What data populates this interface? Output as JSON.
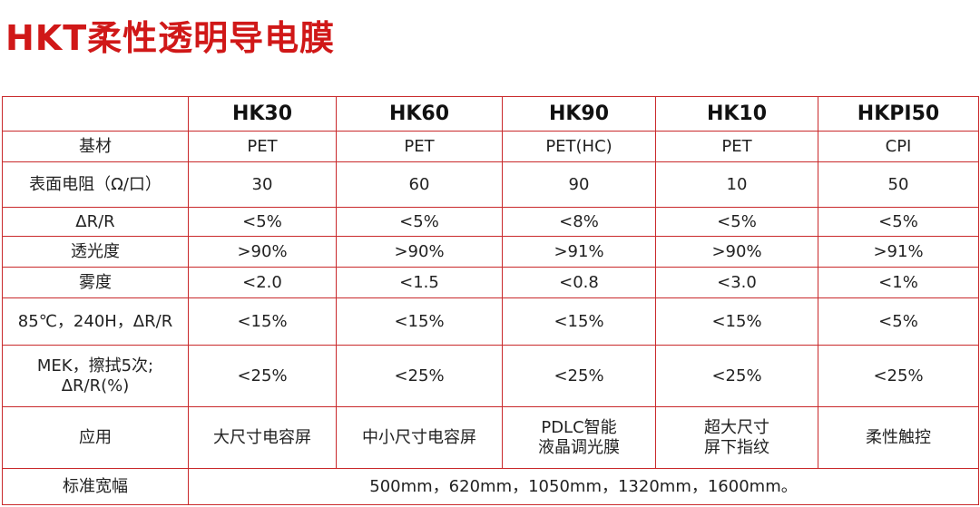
{
  "title": "HKT柔性透明导电膜",
  "header": {
    "corner": "",
    "models": [
      "HK30",
      "HK60",
      "HK90",
      "HK10",
      "HKPI50"
    ]
  },
  "rows": [
    {
      "label": "基材",
      "values": [
        "PET",
        "PET",
        "PET(HC)",
        "PET",
        "CPI"
      ]
    },
    {
      "label": "表面电阻（Ω/口）",
      "values": [
        "30",
        "60",
        "90",
        "10",
        "50"
      ]
    },
    {
      "label": "ΔR/R",
      "values": [
        "<5%",
        "<5%",
        "<8%",
        "<5%",
        "<5%"
      ]
    },
    {
      "label": "透光度",
      "values": [
        ">90%",
        ">90%",
        ">91%",
        ">90%",
        ">91%"
      ]
    },
    {
      "label": "雾度",
      "values": [
        "<2.0",
        "<1.5",
        "<0.8",
        "<3.0",
        "<1%"
      ]
    },
    {
      "label": "85℃，240H，ΔR/R",
      "values": [
        "<15%",
        "<15%",
        "<15%",
        "<15%",
        "<5%"
      ]
    },
    {
      "label_lines": [
        "MEK，擦拭5次;",
        "ΔR/R(%)"
      ],
      "values": [
        "<25%",
        "<25%",
        "<25%",
        "<25%",
        "<25%"
      ]
    },
    {
      "label": "应用",
      "values_lines": [
        [
          "大尺寸电容屏"
        ],
        [
          "中小尺寸电容屏"
        ],
        [
          "PDLC智能",
          "液晶调光膜"
        ],
        [
          "超大尺寸",
          "屏下指纹"
        ],
        [
          "柔性触控"
        ]
      ]
    }
  ],
  "width_row": {
    "label": "标准宽幅",
    "value": "500mm，620mm，1050mm，1320mm，1600mm。"
  }
}
